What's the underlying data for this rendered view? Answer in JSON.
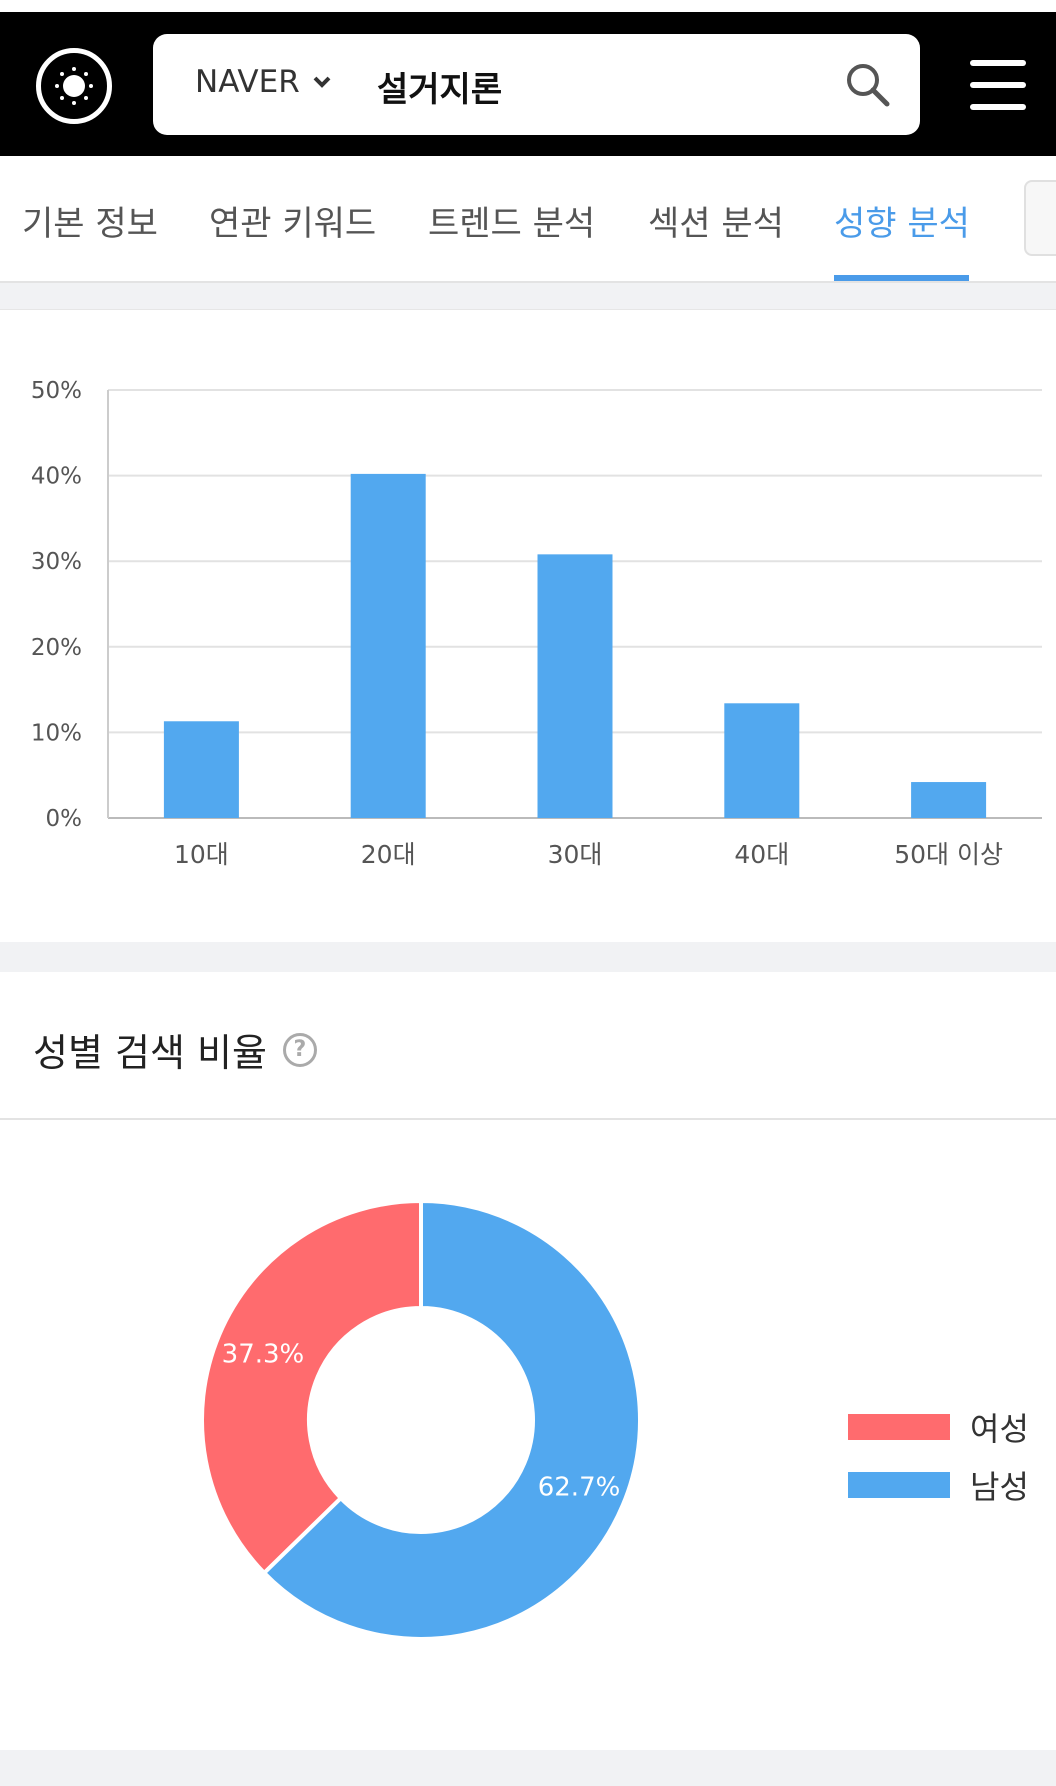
{
  "header": {
    "engine": "NAVER",
    "query": "설거지론"
  },
  "tabs": [
    {
      "label": "기본 정보",
      "active": false
    },
    {
      "label": "연관 키워드",
      "active": false
    },
    {
      "label": "트렌드 분석",
      "active": false
    },
    {
      "label": "섹션 분석",
      "active": false
    },
    {
      "label": "성향 분석",
      "active": true
    }
  ],
  "age_section": {
    "chart_data": {
      "type": "bar",
      "categories": [
        "10대",
        "20대",
        "30대",
        "40대",
        "50대 이상"
      ],
      "values": [
        11.3,
        40.2,
        30.8,
        13.4,
        4.2
      ],
      "ylim": [
        0,
        50
      ],
      "yticks": [
        "0%",
        "10%",
        "20%",
        "30%",
        "40%",
        "50%"
      ],
      "grid": true,
      "color": "#52a8ef"
    }
  },
  "gender_section": {
    "title": "성별 검색 비율",
    "chart_data": {
      "type": "pie",
      "labels": [
        "여성",
        "남성"
      ],
      "values": [
        37.3,
        62.7
      ],
      "value_labels": [
        "37.3%",
        "62.7%"
      ],
      "colors": [
        "#ff6b6e",
        "#52a8ef"
      ]
    }
  }
}
